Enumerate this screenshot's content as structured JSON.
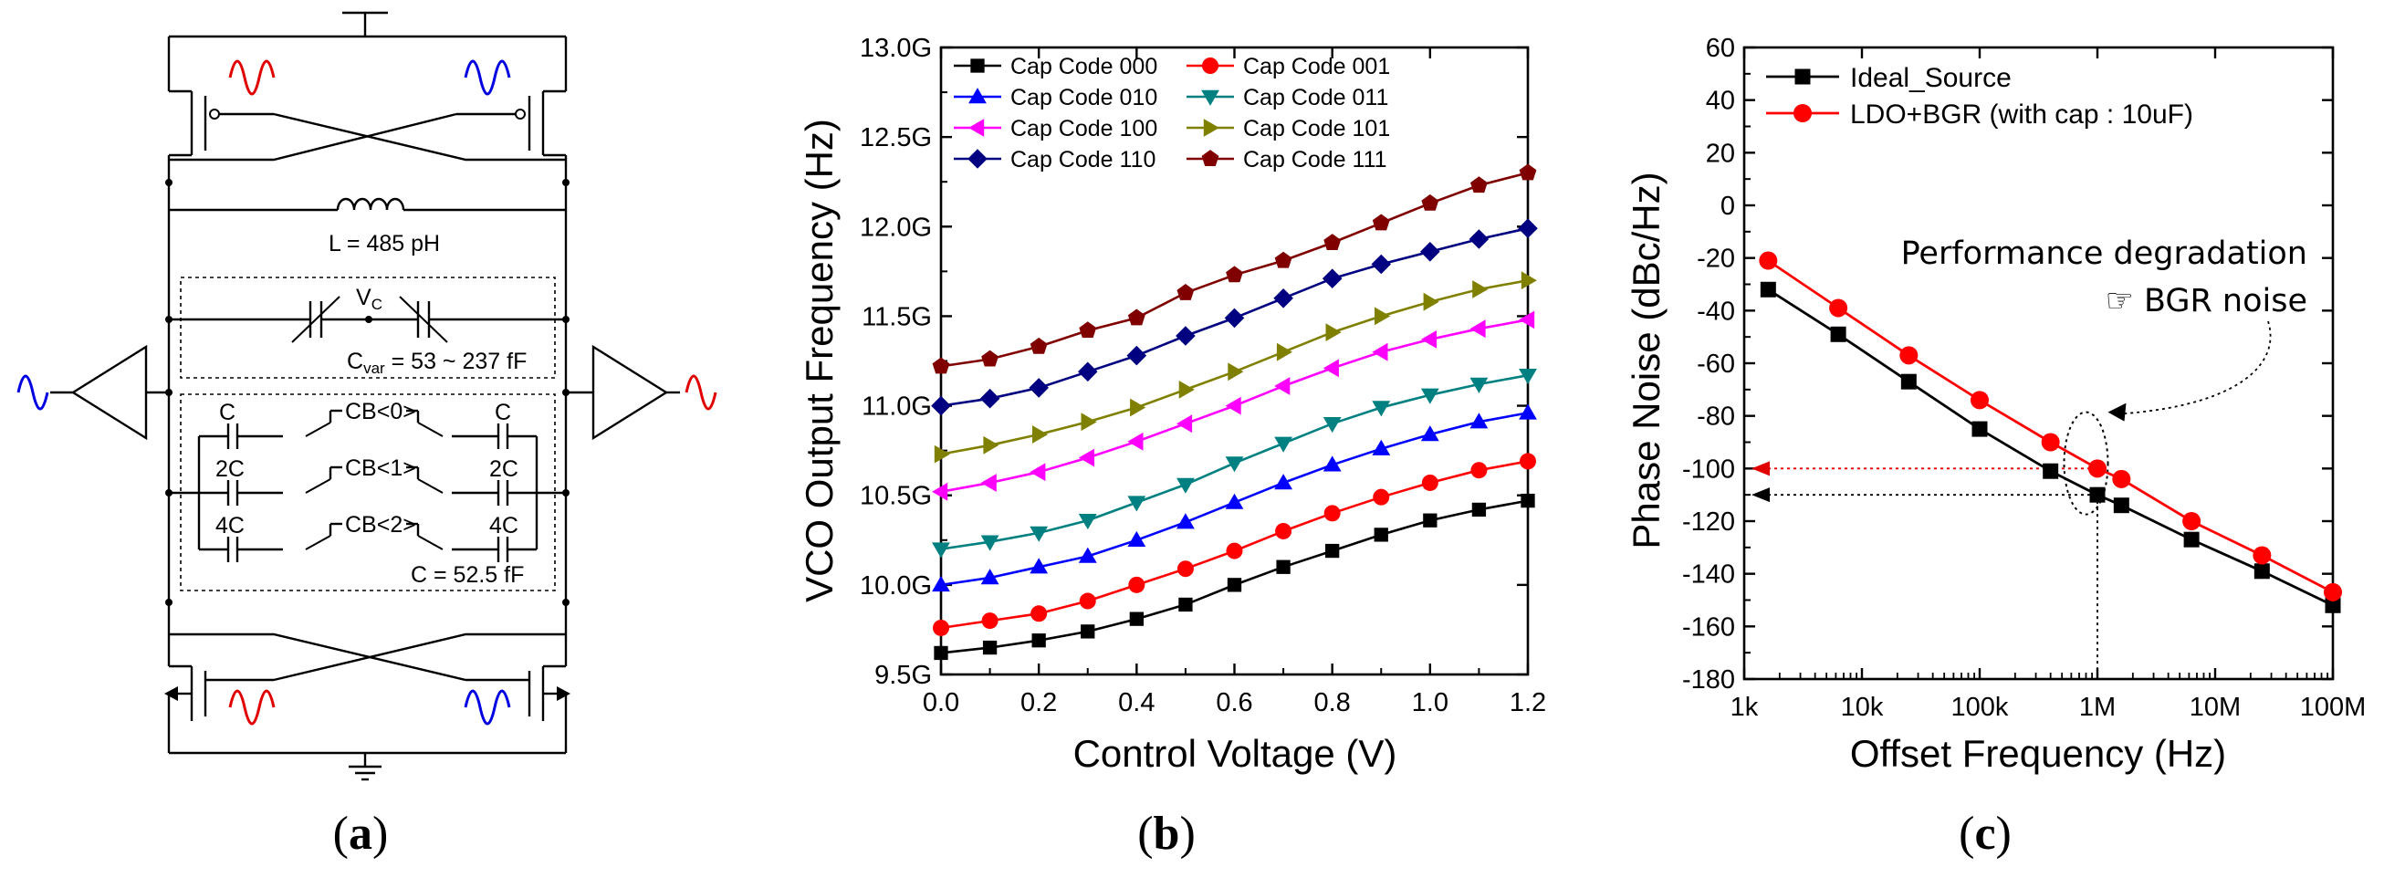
{
  "panels": [
    {
      "label_open": "(",
      "letter": "a",
      "label_close": ")"
    },
    {
      "label_open": "(",
      "letter": "b",
      "label_close": ")"
    },
    {
      "label_open": "(",
      "letter": "c",
      "label_close": ")"
    }
  ],
  "circuit": {
    "inductor_label": "L = 485 pH",
    "vc_main": "V",
    "vc_sub": "C",
    "cvar_main": "C",
    "cvar_sub": "var",
    "cvar_rest": " = 53 ~ 237 fF",
    "cap_total": "C = 52.5 fF",
    "cap_left": [
      "C",
      "2C",
      "4C"
    ],
    "cap_right": [
      "C",
      "2C",
      "4C"
    ],
    "cb_labels": [
      "CB<0>",
      "CB<1>",
      "CB<2>"
    ]
  },
  "chart_data": [
    {
      "type": "line",
      "xlabel": "Control Voltage (V)",
      "ylabel": "VCO Output Frequency (Hz)",
      "xlim": [
        0.0,
        1.2
      ],
      "ylim": [
        9.5,
        13.0
      ],
      "x_ticks": [
        "0.0",
        "0.2",
        "0.4",
        "0.6",
        "0.8",
        "1.0",
        "1.2"
      ],
      "y_ticks": [
        "9.5G",
        "10.0G",
        "10.5G",
        "11.0G",
        "11.5G",
        "12.0G",
        "12.5G",
        "13.0G"
      ],
      "x": [
        0.0,
        0.1,
        0.2,
        0.3,
        0.4,
        0.5,
        0.6,
        0.7,
        0.8,
        0.9,
        1.0,
        1.1,
        1.2
      ],
      "series": [
        {
          "name": "Cap Code 000",
          "color": "#000000",
          "marker": "square",
          "values": [
            9.62,
            9.65,
            9.69,
            9.74,
            9.81,
            9.89,
            10.0,
            10.1,
            10.19,
            10.28,
            10.36,
            10.42,
            10.47
          ]
        },
        {
          "name": "Cap Code 001",
          "color": "#ff0000",
          "marker": "circle",
          "values": [
            9.76,
            9.8,
            9.84,
            9.91,
            10.0,
            10.09,
            10.19,
            10.3,
            10.4,
            10.49,
            10.57,
            10.64,
            10.69
          ]
        },
        {
          "name": "Cap Code 010",
          "color": "#0000ff",
          "marker": "triangle-up",
          "values": [
            10.0,
            10.04,
            10.1,
            10.16,
            10.25,
            10.35,
            10.46,
            10.57,
            10.67,
            10.76,
            10.84,
            10.91,
            10.96
          ]
        },
        {
          "name": "Cap Code 011",
          "color": "#008080",
          "marker": "triangle-down",
          "values": [
            10.2,
            10.24,
            10.29,
            10.36,
            10.46,
            10.56,
            10.68,
            10.79,
            10.9,
            10.99,
            11.06,
            11.12,
            11.17
          ]
        },
        {
          "name": "Cap Code 100",
          "color": "#ff00ff",
          "marker": "triangle-left",
          "values": [
            10.52,
            10.57,
            10.63,
            10.71,
            10.8,
            10.9,
            11.0,
            11.11,
            11.21,
            11.3,
            11.37,
            11.43,
            11.48
          ]
        },
        {
          "name": "Cap Code 101",
          "color": "#808000",
          "marker": "triangle-right",
          "values": [
            10.73,
            10.78,
            10.84,
            10.91,
            10.99,
            11.09,
            11.19,
            11.3,
            11.41,
            11.5,
            11.58,
            11.65,
            11.7
          ]
        },
        {
          "name": "Cap Code 110",
          "color": "#000080",
          "marker": "diamond",
          "values": [
            11.0,
            11.04,
            11.1,
            11.19,
            11.28,
            11.39,
            11.49,
            11.6,
            11.71,
            11.79,
            11.86,
            11.93,
            11.99
          ]
        },
        {
          "name": "Cap Code 111",
          "color": "#800000",
          "marker": "pentagon",
          "values": [
            11.22,
            11.26,
            11.33,
            11.42,
            11.49,
            11.63,
            11.73,
            11.81,
            11.91,
            12.02,
            12.13,
            12.23,
            12.3
          ]
        }
      ]
    },
    {
      "type": "line",
      "xlabel": "Offset Frequency (Hz)",
      "ylabel": "Phase Noise (dBc/Hz)",
      "xscale": "log",
      "xlim": [
        1000,
        100000000
      ],
      "ylim": [
        -180,
        60
      ],
      "x_ticks": [
        "1k",
        "10k",
        "100k",
        "1M",
        "10M",
        "100M"
      ],
      "y_ticks": [
        "60",
        "40",
        "20",
        "0",
        "-20",
        "-40",
        "-60",
        "-80",
        "-100",
        "-120",
        "-140",
        "-160",
        "-180"
      ],
      "x": [
        1600,
        6300,
        25000,
        100000,
        400000,
        1000000,
        1600000,
        6300000,
        25000000,
        100000000
      ],
      "series": [
        {
          "name": "Ideal_Source",
          "color": "#000000",
          "marker": "square",
          "values": [
            -32,
            -49,
            -67,
            -85,
            -101,
            -110,
            -114,
            -127,
            -139,
            -152
          ]
        },
        {
          "name": "LDO+BGR (with cap : 10uF)",
          "color": "#ff0000",
          "marker": "circle",
          "values": [
            -21,
            -39,
            -57,
            -74,
            -90,
            -100,
            -104,
            -120,
            -133,
            -147
          ]
        }
      ],
      "annotations": [
        "Performance degradation",
        "☞ BGR noise"
      ]
    }
  ]
}
